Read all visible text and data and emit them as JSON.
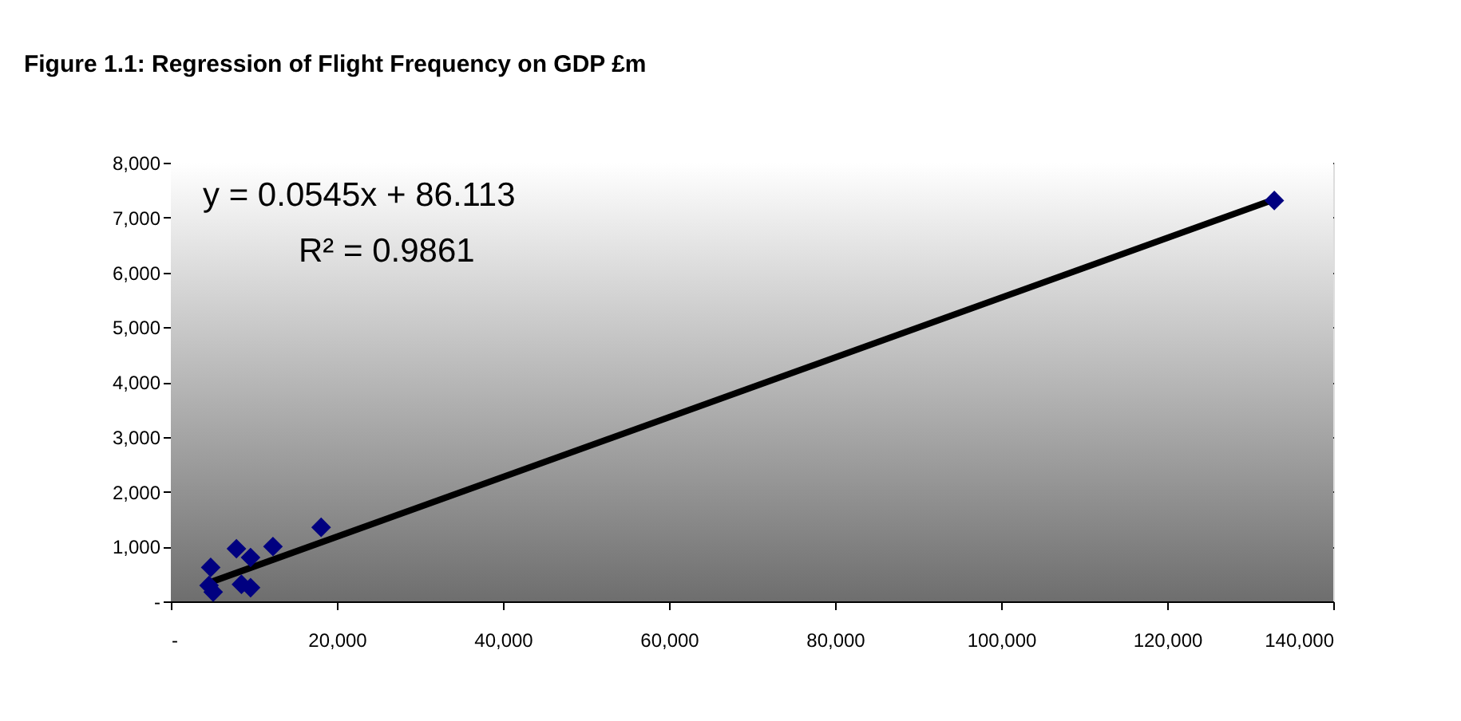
{
  "chart_data": {
    "type": "scatter",
    "title": "Figure 1.1: Regression of Flight Frequency on GDP £m",
    "series": [
      {
        "color": "#000080",
        "marker": "diamond",
        "x": [
          4800,
          4600,
          5100,
          7900,
          9600,
          12300,
          8500,
          9600,
          18100,
          132900
        ],
        "values": [
          620,
          290,
          170,
          960,
          800,
          1000,
          310,
          250,
          1350,
          7310
        ]
      },
      {
        "type": "line",
        "color": "#000000",
        "marker": "none",
        "x": [
          4600,
          132900
        ],
        "values": [
          340,
          7330
        ]
      }
    ],
    "annotations": [
      "y = 0.0545x + 86.113",
      "R² = 0.9861"
    ],
    "xlim": [
      0,
      140000
    ],
    "xticks": [
      {
        "value": 0,
        "label": "-"
      },
      {
        "value": 20000,
        "label": "20,000"
      },
      {
        "value": 40000,
        "label": "40,000"
      },
      {
        "value": 60000,
        "label": "60,000"
      },
      {
        "value": 80000,
        "label": "80,000"
      },
      {
        "value": 100000,
        "label": "100,000"
      },
      {
        "value": 120000,
        "label": "120,000"
      },
      {
        "value": 140000,
        "label": "140,000"
      }
    ],
    "ylim": [
      0,
      8000
    ],
    "yticks": [
      {
        "value": 0,
        "label": "-"
      },
      {
        "value": 1000,
        "label": "1,000"
      },
      {
        "value": 2000,
        "label": "2,000"
      },
      {
        "value": 3000,
        "label": "3,000"
      },
      {
        "value": 4000,
        "label": "4,000"
      },
      {
        "value": 5000,
        "label": "5,000"
      },
      {
        "value": 6000,
        "label": "6,000"
      },
      {
        "value": 7000,
        "label": "7,000"
      },
      {
        "value": 8000,
        "label": "8,000"
      }
    ],
    "grid": "y"
  }
}
